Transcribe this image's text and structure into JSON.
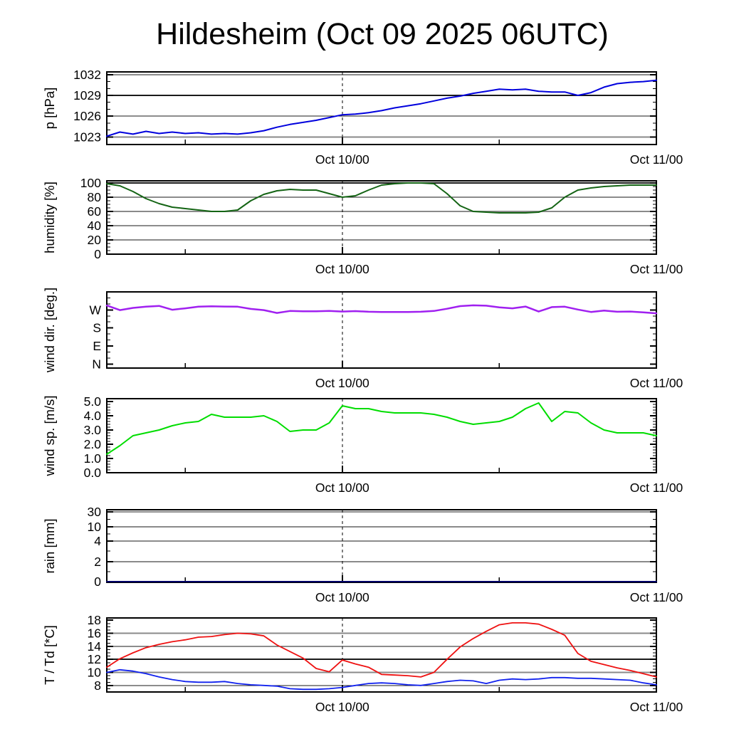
{
  "title": "Hildesheim (Oct 09 2025 06UTC)",
  "x_axis": {
    "hours_total": 42,
    "labels": [
      {
        "hour": 18,
        "text": "Oct 10/00"
      },
      {
        "hour": 42,
        "text": "Oct 11/00"
      }
    ],
    "minor_tick_hours": [
      6,
      30
    ],
    "major_tick_hours": [
      18
    ],
    "dashed_line_hour": 18
  },
  "chart_data": [
    {
      "type": "line",
      "ylabel": "p [hPa]",
      "ylim": [
        1021.9,
        1032.4
      ],
      "minor_step": 1,
      "yticks": [
        {
          "v": 1032,
          "label": "1032",
          "grid": "k"
        },
        {
          "v": 1029,
          "label": "1029",
          "grid": "k2"
        },
        {
          "v": 1026,
          "label": "1026",
          "grid": "k"
        },
        {
          "v": 1023,
          "label": "1023",
          "grid": "g"
        }
      ],
      "series": [
        {
          "name": "pressure",
          "color": "#0000dd",
          "width": 2,
          "values": [
            1023.1,
            1023.7,
            1023.4,
            1023.8,
            1023.5,
            1023.7,
            1023.5,
            1023.6,
            1023.4,
            1023.5,
            1023.4,
            1023.6,
            1023.9,
            1024.4,
            1024.8,
            1025.1,
            1025.4,
            1025.8,
            1026.2,
            1026.3,
            1026.5,
            1026.8,
            1027.2,
            1027.5,
            1027.8,
            1028.2,
            1028.6,
            1028.9,
            1029.3,
            1029.6,
            1029.9,
            1029.8,
            1029.9,
            1029.6,
            1029.5,
            1029.5,
            1029.0,
            1029.4,
            1030.2,
            1030.7,
            1030.9,
            1031.0,
            1031.2
          ]
        }
      ]
    },
    {
      "type": "line",
      "ylabel": "humidity [%]",
      "ylim": [
        0,
        103
      ],
      "minor_step": 5,
      "yticks": [
        {
          "v": 100,
          "label": "100",
          "grid": "k2"
        },
        {
          "v": 80,
          "label": "80",
          "grid": "k"
        },
        {
          "v": 60,
          "label": "60",
          "grid": "g"
        },
        {
          "v": 40,
          "label": "40",
          "grid": "k"
        },
        {
          "v": 20,
          "label": "20",
          "grid": "g"
        },
        {
          "v": 0,
          "label": "0"
        }
      ],
      "series": [
        {
          "name": "humidity",
          "color": "#146414",
          "width": 2,
          "values": [
            99,
            96,
            88,
            78,
            71,
            66,
            64,
            62,
            60,
            60,
            62,
            75,
            84,
            89,
            91,
            90,
            90,
            85,
            80,
            82,
            90,
            97,
            99,
            100,
            100,
            99,
            85,
            68,
            60,
            59,
            58,
            58,
            58,
            59,
            65,
            80,
            90,
            93,
            95,
            96,
            97,
            97,
            97
          ]
        }
      ]
    },
    {
      "type": "line",
      "ylabel": "wind dir. [deg.]",
      "ylim": [
        -20,
        360
      ],
      "minor_step": 30,
      "yticks": [
        {
          "v": 270,
          "label": "W"
        },
        {
          "v": 180,
          "label": "S"
        },
        {
          "v": 90,
          "label": "E"
        },
        {
          "v": 0,
          "label": "N"
        }
      ],
      "series": [
        {
          "name": "wind-direction",
          "color": "#a020f0",
          "width": 2.5,
          "values": [
            292,
            269,
            280,
            286,
            290,
            271,
            278,
            286,
            288,
            287,
            286,
            275,
            269,
            255,
            265,
            263,
            263,
            265,
            262,
            264,
            261,
            260,
            260,
            260,
            261,
            265,
            276,
            289,
            293,
            291,
            283,
            278,
            287,
            262,
            284,
            286,
            272,
            260,
            267,
            261,
            262,
            258,
            253
          ]
        }
      ]
    },
    {
      "type": "line",
      "ylabel": "wind sp. [m/s]",
      "ylim": [
        0,
        5.2
      ],
      "minor_step": 0.2,
      "yticks": [
        {
          "v": 5,
          "label": "5.0"
        },
        {
          "v": 4,
          "label": "4.0"
        },
        {
          "v": 3,
          "label": "3.0"
        },
        {
          "v": 2,
          "label": "2.0"
        },
        {
          "v": 1,
          "label": "1.0"
        },
        {
          "v": 0,
          "label": "0.0"
        }
      ],
      "series": [
        {
          "name": "wind-speed",
          "color": "#00dd00",
          "width": 2,
          "values": [
            1.3,
            1.9,
            2.6,
            2.8,
            3.0,
            3.3,
            3.5,
            3.6,
            4.1,
            3.9,
            3.9,
            3.9,
            4.0,
            3.6,
            2.9,
            3.0,
            3.0,
            3.5,
            4.7,
            4.5,
            4.5,
            4.3,
            4.2,
            4.2,
            4.2,
            4.1,
            3.9,
            3.6,
            3.4,
            3.5,
            3.6,
            3.9,
            4.5,
            4.9,
            3.6,
            4.3,
            4.2,
            3.5,
            3.0,
            2.8,
            2.8,
            2.8,
            2.6
          ]
        }
      ]
    },
    {
      "type": "line",
      "ylabel": "rain [mm]",
      "scale": "custom",
      "yticks": [
        {
          "f": 0.971,
          "label": "30",
          "grid": "k"
        },
        {
          "f": 0.765,
          "label": "10",
          "grid": "g"
        },
        {
          "f": 0.569,
          "label": "4",
          "grid": "k"
        },
        {
          "f": 0.284,
          "label": "2",
          "grid": "g"
        },
        {
          "f": 0.01,
          "label": "0"
        }
      ],
      "minor_fracs": [
        0.148,
        0.43,
        0.667,
        0.87
      ],
      "series": [
        {
          "name": "rain",
          "color": "#000066",
          "width": 2,
          "values": [
            0,
            0,
            0,
            0,
            0,
            0,
            0,
            0,
            0,
            0,
            0,
            0,
            0,
            0,
            0,
            0,
            0,
            0,
            0,
            0,
            0,
            0,
            0,
            0,
            0,
            0,
            0,
            0,
            0,
            0,
            0,
            0,
            0,
            0,
            0,
            0,
            0,
            0,
            0,
            0,
            0,
            0,
            0
          ]
        }
      ]
    },
    {
      "type": "line",
      "ylabel": "T / Td [*C]",
      "ylim": [
        7.0,
        18.35
      ],
      "minor_step": 0.5,
      "yticks": [
        {
          "v": 18,
          "label": "18"
        },
        {
          "v": 16,
          "label": "16",
          "grid": "g"
        },
        {
          "v": 14,
          "label": "14",
          "grid": "k"
        },
        {
          "v": 12,
          "label": "12",
          "grid": "k2"
        },
        {
          "v": 10,
          "label": "10",
          "grid": "g"
        },
        {
          "v": 8,
          "label": "8",
          "grid": "k"
        }
      ],
      "series": [
        {
          "name": "temperature",
          "color": "#ee1111",
          "width": 1.8,
          "values": [
            10.8,
            12.1,
            13.0,
            13.8,
            14.3,
            14.7,
            15.0,
            15.4,
            15.5,
            15.8,
            16.0,
            15.9,
            15.6,
            14.2,
            13.2,
            12.2,
            10.6,
            10.1,
            11.9,
            11.3,
            10.8,
            9.7,
            9.6,
            9.5,
            9.3,
            10.0,
            12.0,
            13.9,
            15.2,
            16.3,
            17.3,
            17.6,
            17.6,
            17.4,
            16.6,
            15.7,
            12.9,
            11.7,
            11.2,
            10.7,
            10.3,
            9.8,
            9.3
          ]
        },
        {
          "name": "dewpoint",
          "color": "#1122ee",
          "width": 1.8,
          "values": [
            10.0,
            10.4,
            10.2,
            9.8,
            9.3,
            8.9,
            8.6,
            8.5,
            8.5,
            8.6,
            8.3,
            8.1,
            8.0,
            7.9,
            7.5,
            7.4,
            7.4,
            7.5,
            7.7,
            8.0,
            8.3,
            8.4,
            8.3,
            8.1,
            8.0,
            8.3,
            8.6,
            8.8,
            8.7,
            8.3,
            8.8,
            9.0,
            8.9,
            9.0,
            9.2,
            9.2,
            9.1,
            9.1,
            9.0,
            8.9,
            8.8,
            8.4,
            8.1
          ]
        }
      ]
    }
  ]
}
